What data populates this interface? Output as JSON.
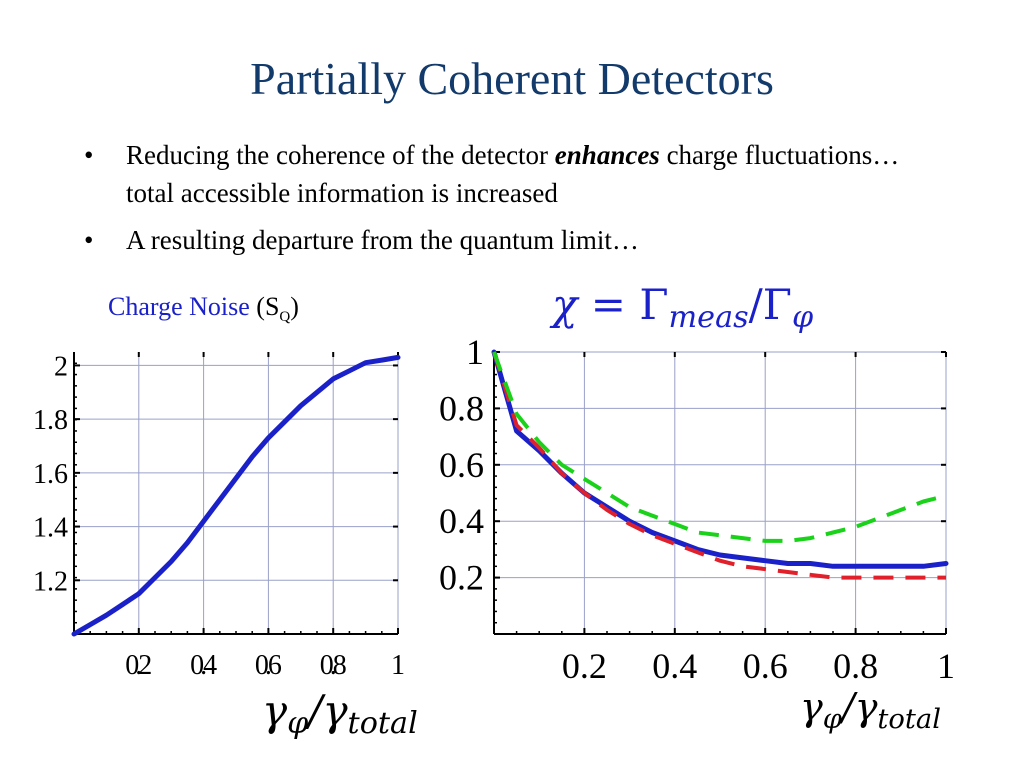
{
  "slide": {
    "title": "Partially Coherent Detectors",
    "bullets": [
      {
        "before": "Reducing the coherence of the detector ",
        "emphasis": "enhances",
        "after": " charge fluctuations… total accessible information is increased"
      },
      {
        "before": "A resulting departure from the quantum limit…",
        "emphasis": "",
        "after": ""
      }
    ],
    "bullet_symbol": "•"
  },
  "chart_data": [
    {
      "type": "line",
      "title": "Charge Noise (SQ)",
      "title_parts": {
        "text": "Charge Noise",
        "open": " (S",
        "sub": "Q",
        "close": ")"
      },
      "xlabel": "γφ/γtotal",
      "xlabel_parts": {
        "gamma1": "γ",
        "sub1": "φ",
        "slash": "/",
        "gamma2": "γ",
        "sub2": "total"
      },
      "ylabel": "",
      "xlim": [
        0,
        1
      ],
      "ylim": [
        1.0,
        2.05
      ],
      "x_ticks": [
        0.2,
        0.4,
        0.6,
        0.8,
        1
      ],
      "x_tick_labels": [
        "0.2",
        "0.4",
        "0.6",
        "0.8",
        "1"
      ],
      "y_ticks": [
        1.2,
        1.4,
        1.6,
        1.8,
        2
      ],
      "y_tick_labels": [
        "1.2",
        "1.4",
        "1.6",
        "1.8",
        "2"
      ],
      "grid": true,
      "series": [
        {
          "color": "#1b21c8",
          "style": "solid",
          "x": [
            0,
            0.05,
            0.1,
            0.15,
            0.2,
            0.25,
            0.3,
            0.35,
            0.4,
            0.45,
            0.5,
            0.55,
            0.6,
            0.65,
            0.7,
            0.75,
            0.8,
            0.85,
            0.9,
            0.95,
            1.0
          ],
          "y": [
            1.0,
            1.035,
            1.07,
            1.11,
            1.15,
            1.21,
            1.27,
            1.34,
            1.42,
            1.5,
            1.58,
            1.66,
            1.73,
            1.79,
            1.85,
            1.9,
            1.95,
            1.98,
            2.01,
            2.02,
            2.03
          ]
        }
      ]
    },
    {
      "type": "line",
      "title": "χ = Γmeas/Γφ",
      "title_parts": {
        "chi": "χ",
        "eq": " = ",
        "Gamma1": "Γ",
        "sub1": "meas",
        "slash": "/",
        "Gamma2": "Γ",
        "sub2": "φ"
      },
      "xlabel": "γφ/γtotal",
      "xlabel_parts": {
        "gamma1": "γ",
        "sub1": "φ",
        "slash": "/",
        "gamma2": "γ",
        "sub2": "total"
      },
      "ylabel": "",
      "xlim": [
        0,
        1
      ],
      "ylim": [
        0,
        1
      ],
      "x_ticks": [
        0.2,
        0.4,
        0.6,
        0.8,
        1
      ],
      "x_tick_labels": [
        "0.2",
        "0.4",
        "0.6",
        "0.8",
        "1"
      ],
      "y_ticks": [
        0.2,
        0.4,
        0.6,
        0.8,
        1
      ],
      "y_tick_labels": [
        "0.2",
        "0.4",
        "0.6",
        "0.8",
        "1"
      ],
      "grid": true,
      "series": [
        {
          "color": "#1b21c8",
          "style": "solid",
          "x": [
            0,
            0.05,
            0.1,
            0.15,
            0.2,
            0.25,
            0.3,
            0.35,
            0.4,
            0.45,
            0.5,
            0.55,
            0.6,
            0.65,
            0.7,
            0.75,
            0.8,
            0.85,
            0.9,
            0.95,
            1.0
          ],
          "y": [
            1.0,
            0.72,
            0.65,
            0.57,
            0.5,
            0.45,
            0.4,
            0.36,
            0.33,
            0.3,
            0.28,
            0.27,
            0.26,
            0.25,
            0.25,
            0.24,
            0.24,
            0.24,
            0.24,
            0.24,
            0.25
          ]
        },
        {
          "color": "#e0202a",
          "style": "dashed",
          "x": [
            0,
            0.05,
            0.1,
            0.15,
            0.2,
            0.25,
            0.3,
            0.35,
            0.4,
            0.45,
            0.5,
            0.55,
            0.6,
            0.65,
            0.7,
            0.75,
            0.8,
            0.85,
            0.9,
            0.95,
            1.0
          ],
          "y": [
            1.0,
            0.74,
            0.66,
            0.57,
            0.5,
            0.44,
            0.39,
            0.35,
            0.32,
            0.29,
            0.26,
            0.24,
            0.23,
            0.22,
            0.21,
            0.2,
            0.2,
            0.2,
            0.2,
            0.2,
            0.2
          ]
        },
        {
          "color": "#1ad21a",
          "style": "dashed",
          "x": [
            0,
            0.05,
            0.1,
            0.15,
            0.2,
            0.25,
            0.3,
            0.35,
            0.4,
            0.45,
            0.5,
            0.55,
            0.6,
            0.65,
            0.7,
            0.75,
            0.8,
            0.85,
            0.9,
            0.95,
            1.0
          ],
          "y": [
            1.0,
            0.78,
            0.68,
            0.6,
            0.55,
            0.5,
            0.45,
            0.42,
            0.39,
            0.36,
            0.35,
            0.34,
            0.33,
            0.33,
            0.34,
            0.36,
            0.38,
            0.41,
            0.44,
            0.47,
            0.49
          ]
        }
      ]
    }
  ]
}
